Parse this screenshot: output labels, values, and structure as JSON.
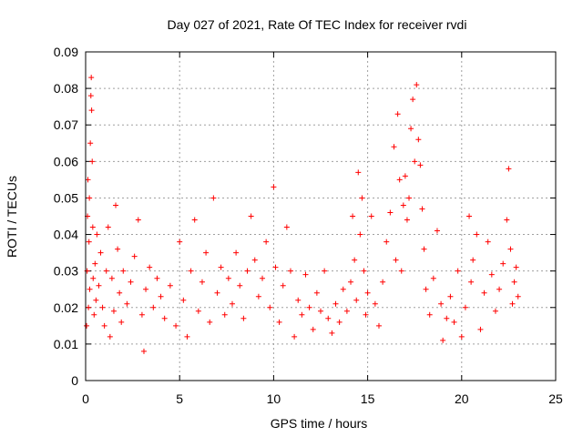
{
  "chart_data": {
    "type": "scatter",
    "title": "Day 027 of 2021, Rate Of TEC Index for receiver rvdi",
    "xlabel": "GPS time / hours",
    "ylabel": "ROTI / TECUs",
    "xlim": [
      0,
      25
    ],
    "ylim": [
      0,
      0.09
    ],
    "x_ticks": [
      "0",
      "5",
      "10",
      "15",
      "20",
      "25"
    ],
    "y_ticks": [
      "0",
      "0.01",
      "0.02",
      "0.03",
      "0.04",
      "0.05",
      "0.06",
      "0.07",
      "0.08",
      "0.09"
    ],
    "grid": true,
    "marker": "+",
    "series_color": "#ff0000",
    "series": [
      {
        "points": [
          [
            0.05,
            0.015
          ],
          [
            0.08,
            0.03
          ],
          [
            0.1,
            0.045
          ],
          [
            0.12,
            0.055
          ],
          [
            0.15,
            0.02
          ],
          [
            0.18,
            0.038
          ],
          [
            0.2,
            0.05
          ],
          [
            0.22,
            0.025
          ],
          [
            0.25,
            0.065
          ],
          [
            0.28,
            0.078
          ],
          [
            0.3,
            0.083
          ],
          [
            0.32,
            0.074
          ],
          [
            0.35,
            0.06
          ],
          [
            0.38,
            0.042
          ],
          [
            0.4,
            0.028
          ],
          [
            0.45,
            0.018
          ],
          [
            0.5,
            0.032
          ],
          [
            0.55,
            0.022
          ],
          [
            0.6,
            0.04
          ],
          [
            0.7,
            0.026
          ],
          [
            0.8,
            0.035
          ],
          [
            0.9,
            0.02
          ],
          [
            1.0,
            0.015
          ],
          [
            1.1,
            0.03
          ],
          [
            1.2,
            0.042
          ],
          [
            1.3,
            0.012
          ],
          [
            1.4,
            0.028
          ],
          [
            1.5,
            0.019
          ],
          [
            1.6,
            0.048
          ],
          [
            1.7,
            0.036
          ],
          [
            1.8,
            0.024
          ],
          [
            1.9,
            0.016
          ],
          [
            2.0,
            0.03
          ],
          [
            2.2,
            0.021
          ],
          [
            2.4,
            0.027
          ],
          [
            2.6,
            0.034
          ],
          [
            2.8,
            0.044
          ],
          [
            3.0,
            0.018
          ],
          [
            3.1,
            0.008
          ],
          [
            3.2,
            0.025
          ],
          [
            3.4,
            0.031
          ],
          [
            3.6,
            0.02
          ],
          [
            3.8,
            0.028
          ],
          [
            4.0,
            0.023
          ],
          [
            4.2,
            0.017
          ],
          [
            4.5,
            0.026
          ],
          [
            4.8,
            0.015
          ],
          [
            5.0,
            0.038
          ],
          [
            5.2,
            0.022
          ],
          [
            5.4,
            0.012
          ],
          [
            5.6,
            0.03
          ],
          [
            5.8,
            0.044
          ],
          [
            6.0,
            0.019
          ],
          [
            6.2,
            0.027
          ],
          [
            6.4,
            0.035
          ],
          [
            6.6,
            0.016
          ],
          [
            6.8,
            0.05
          ],
          [
            7.0,
            0.024
          ],
          [
            7.2,
            0.031
          ],
          [
            7.4,
            0.018
          ],
          [
            7.6,
            0.028
          ],
          [
            7.8,
            0.021
          ],
          [
            8.0,
            0.035
          ],
          [
            8.2,
            0.026
          ],
          [
            8.4,
            0.017
          ],
          [
            8.6,
            0.03
          ],
          [
            8.8,
            0.045
          ],
          [
            9.0,
            0.033
          ],
          [
            9.2,
            0.023
          ],
          [
            9.4,
            0.028
          ],
          [
            9.6,
            0.038
          ],
          [
            9.8,
            0.02
          ],
          [
            10.0,
            0.053
          ],
          [
            10.1,
            0.031
          ],
          [
            10.3,
            0.016
          ],
          [
            10.5,
            0.026
          ],
          [
            10.7,
            0.042
          ],
          [
            10.9,
            0.03
          ],
          [
            11.1,
            0.012
          ],
          [
            11.3,
            0.022
          ],
          [
            11.5,
            0.018
          ],
          [
            11.7,
            0.029
          ],
          [
            11.9,
            0.02
          ],
          [
            12.1,
            0.014
          ],
          [
            12.3,
            0.024
          ],
          [
            12.5,
            0.019
          ],
          [
            12.7,
            0.03
          ],
          [
            12.9,
            0.017
          ],
          [
            13.1,
            0.013
          ],
          [
            13.3,
            0.021
          ],
          [
            13.5,
            0.016
          ],
          [
            13.7,
            0.025
          ],
          [
            13.9,
            0.019
          ],
          [
            14.1,
            0.027
          ],
          [
            14.2,
            0.045
          ],
          [
            14.3,
            0.033
          ],
          [
            14.4,
            0.022
          ],
          [
            14.5,
            0.057
          ],
          [
            14.6,
            0.04
          ],
          [
            14.7,
            0.05
          ],
          [
            14.8,
            0.03
          ],
          [
            14.9,
            0.018
          ],
          [
            15.0,
            0.024
          ],
          [
            15.2,
            0.045
          ],
          [
            15.4,
            0.021
          ],
          [
            15.6,
            0.015
          ],
          [
            15.8,
            0.027
          ],
          [
            16.0,
            0.038
          ],
          [
            16.2,
            0.046
          ],
          [
            16.4,
            0.064
          ],
          [
            16.5,
            0.033
          ],
          [
            16.6,
            0.073
          ],
          [
            16.7,
            0.055
          ],
          [
            16.8,
            0.03
          ],
          [
            16.9,
            0.048
          ],
          [
            17.0,
            0.056
          ],
          [
            17.1,
            0.044
          ],
          [
            17.2,
            0.05
          ],
          [
            17.3,
            0.069
          ],
          [
            17.4,
            0.077
          ],
          [
            17.5,
            0.06
          ],
          [
            17.6,
            0.081
          ],
          [
            17.7,
            0.066
          ],
          [
            17.8,
            0.059
          ],
          [
            17.9,
            0.047
          ],
          [
            18.0,
            0.036
          ],
          [
            18.1,
            0.025
          ],
          [
            18.3,
            0.018
          ],
          [
            18.5,
            0.028
          ],
          [
            18.7,
            0.041
          ],
          [
            18.9,
            0.021
          ],
          [
            19.0,
            0.011
          ],
          [
            19.2,
            0.017
          ],
          [
            19.4,
            0.023
          ],
          [
            19.6,
            0.016
          ],
          [
            19.8,
            0.03
          ],
          [
            20.0,
            0.012
          ],
          [
            20.2,
            0.02
          ],
          [
            20.4,
            0.045
          ],
          [
            20.5,
            0.027
          ],
          [
            20.6,
            0.033
          ],
          [
            20.8,
            0.04
          ],
          [
            21.0,
            0.014
          ],
          [
            21.2,
            0.024
          ],
          [
            21.4,
            0.038
          ],
          [
            21.6,
            0.029
          ],
          [
            21.8,
            0.019
          ],
          [
            22.0,
            0.025
          ],
          [
            22.2,
            0.032
          ],
          [
            22.4,
            0.044
          ],
          [
            22.5,
            0.058
          ],
          [
            22.6,
            0.036
          ],
          [
            22.7,
            0.021
          ],
          [
            22.8,
            0.027
          ],
          [
            22.9,
            0.031
          ],
          [
            23.0,
            0.023
          ]
        ]
      }
    ]
  }
}
